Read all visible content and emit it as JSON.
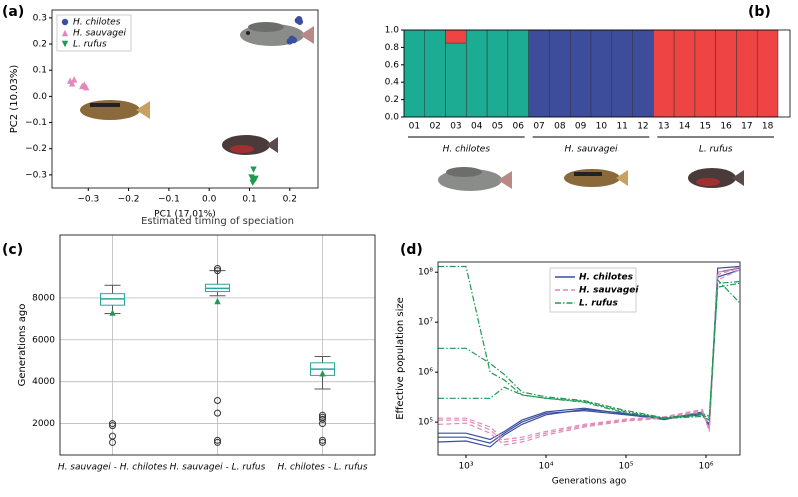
{
  "chart_data": [
    {
      "type": "scatter",
      "label": "(a)",
      "x_label": "PC1 (17.01%)",
      "y_label": "PC2 (10.03%)",
      "xlim": [
        -0.39,
        0.27
      ],
      "ylim": [
        -0.35,
        0.33
      ],
      "xticks": [
        {
          "value": -0.3,
          "label": "−0.3"
        },
        {
          "value": -0.2,
          "label": "−0.2"
        },
        {
          "value": -0.1,
          "label": "−0.1"
        },
        {
          "value": 0,
          "label": "0.0"
        },
        0.1,
        0.2
      ],
      "yticks": [
        {
          "value": -0.3,
          "label": "−0.3"
        },
        {
          "value": -0.2,
          "label": "−0.2"
        },
        {
          "value": -0.1,
          "label": "−0.1"
        },
        {
          "value": 0,
          "label": "0.0"
        },
        0.1,
        0.2,
        0.3
      ],
      "legend": "upper left",
      "series": [
        {
          "name": "H. chilotes",
          "color": "#3b4fa0",
          "marker": "o",
          "x": [
            0.22,
            0.223,
            0.225,
            0.2,
            0.205,
            0.21
          ],
          "values": [
            0.29,
            0.295,
            0.285,
            0.21,
            0.22,
            0.215
          ]
        },
        {
          "name": "H. sauvagei",
          "color": "#e389b9",
          "marker": "^",
          "x": [
            -0.345,
            -0.34,
            -0.335,
            -0.315,
            -0.31,
            -0.305
          ],
          "values": [
            0.06,
            0.05,
            0.065,
            0.04,
            0.045,
            0.035
          ]
        },
        {
          "name": "L. rufus",
          "color": "#1f9a55",
          "marker": "v",
          "x": [
            0.11,
            0.105,
            0.112,
            0.108,
            0.115,
            0.11
          ],
          "values": [
            -0.28,
            -0.31,
            -0.32,
            -0.33,
            -0.315,
            -0.325
          ]
        }
      ]
    },
    {
      "type": "bar",
      "stacked": true,
      "label": "(b)",
      "categories": [
        "01",
        "02",
        "03",
        "04",
        "05",
        "06",
        "07",
        "08",
        "09",
        "10",
        "11",
        "12",
        "13",
        "14",
        "15",
        "16",
        "17",
        "18"
      ],
      "group_labels": [
        "H. chilotes",
        "H. sauvagei",
        "L. rufus"
      ],
      "ylim": [
        0,
        1
      ],
      "yticks": [
        {
          "value": 0,
          "label": "0.0"
        },
        0.2,
        0.4,
        0.6,
        0.8,
        {
          "value": 1,
          "label": "1.0"
        }
      ],
      "series": [
        {
          "color": "#1cab93",
          "values": [
            1,
            1,
            0.85,
            1,
            1,
            1,
            0,
            0,
            0,
            0,
            0,
            0,
            0,
            0,
            0,
            0,
            0,
            0
          ]
        },
        {
          "color": "#3d4d9b",
          "values": [
            0,
            0,
            0,
            0,
            0,
            0,
            1,
            1,
            1,
            1,
            1,
            1,
            0,
            0,
            0,
            0,
            0,
            0
          ]
        },
        {
          "color": "#ee4443",
          "values": [
            0,
            0,
            0.15,
            0,
            0,
            0,
            0,
            0,
            0,
            0,
            0,
            0,
            1,
            1,
            1,
            1,
            1,
            1
          ]
        }
      ]
    },
    {
      "type": "box",
      "label": "(c)",
      "title": "Estimated timing of speciation",
      "y_label": "Generations ago",
      "categories": [
        "H. sauvagei - H. chilotes",
        "H. sauvagei - L. rufus",
        "H. chilotes - L. rufus"
      ],
      "ylim": [
        500,
        11000
      ],
      "yticks": [
        2000,
        4000,
        6000,
        8000
      ],
      "grid": true,
      "color": "#2aa59a",
      "mean_color": "#1f9a55",
      "boxes": [
        {
          "whislo": 7250,
          "q1": 7650,
          "med": 7950,
          "q3": 8200,
          "whishi": 8600,
          "mean": 7300,
          "fliers": [
            1100,
            1400,
            1900,
            2000
          ]
        },
        {
          "whislo": 8100,
          "q1": 8300,
          "med": 8450,
          "q3": 8650,
          "whishi": 9300,
          "mean": 7850,
          "fliers": [
            1100,
            1200,
            2500,
            3100,
            9300,
            9400
          ]
        },
        {
          "whislo": 3650,
          "q1": 4300,
          "med": 4600,
          "q3": 4900,
          "whishi": 5200,
          "mean": 4400,
          "fliers": [
            1100,
            1200,
            2000,
            2200,
            2300,
            2400
          ]
        }
      ]
    },
    {
      "type": "line",
      "label": "(d)",
      "x_label": "Generations ago",
      "y_label": "Effective population size",
      "xscale": "log",
      "yscale": "log",
      "xlim": [
        447,
        2660000
      ],
      "ylim": [
        22000,
        160000000
      ],
      "xticks": [
        {
          "value": 1000,
          "label": "10³"
        },
        {
          "value": 10000,
          "label": "10⁴"
        },
        {
          "value": 100000,
          "label": "10⁵"
        },
        {
          "value": 1000000,
          "label": "10⁶"
        }
      ],
      "yticks": [
        {
          "value": 100000,
          "label": "10⁵"
        },
        {
          "value": 1000000,
          "label": "10⁶"
        },
        {
          "value": 10000000,
          "label": "10⁷"
        },
        {
          "value": 100000000,
          "label": "10⁸"
        }
      ],
      "legend": "upper right",
      "x": [
        450,
        1000,
        2000,
        3000,
        5000,
        10000,
        30000,
        100000,
        300000,
        900000,
        1100000,
        1400000,
        2600000
      ],
      "series": [
        {
          "name": "H. chilotes",
          "color": "#3b4fa0",
          "dash": "solid",
          "runs": [
            [
              50000,
              50000,
              38000,
              60000,
              100000,
              150000,
              170000,
              140000,
              115000,
              150000,
              80000,
              100000000,
              120000000
            ],
            [
              40000,
              42000,
              32000,
              55000,
              90000,
              140000,
              180000,
              150000,
              118000,
              140000,
              90000,
              80000000,
              110000000
            ],
            [
              60000,
              60000,
              45000,
              65000,
              110000,
              160000,
              190000,
              145000,
              112000,
              160000,
              75000,
              120000000,
              130000000
            ]
          ]
        },
        {
          "name": "H. sauvagei",
          "color": "#e389b9",
          "dash": "dashed",
          "runs": [
            [
              110000,
              110000,
              70000,
              40000,
              45000,
              60000,
              85000,
              110000,
              125000,
              170000,
              70000,
              90000000,
              120000000
            ],
            [
              90000,
              95000,
              60000,
              35000,
              40000,
              55000,
              80000,
              105000,
              120000,
              160000,
              80000,
              70000000,
              110000000
            ],
            [
              120000,
              120000,
              80000,
              45000,
              50000,
              65000,
              90000,
              115000,
              128000,
              180000,
              65000,
              100000000,
              125000000
            ]
          ]
        },
        {
          "name": "L. rufus",
          "color": "#1f9a55",
          "dash": "dashdot",
          "runs": [
            [
              130000000,
              130000000,
              1000000,
              700000,
              350000,
              300000,
              260000,
              160000,
              120000,
              140000,
              120000,
              60000000,
              65000000
            ],
            [
              3000000,
              3000000,
              1500000,
              900000,
              400000,
              320000,
              270000,
              170000,
              122000,
              150000,
              130000,
              70000000,
              25000000
            ],
            [
              300000,
              300000,
              300000,
              500000,
              350000,
              300000,
              250000,
              150000,
              118000,
              130000,
              110000,
              50000000,
              60000000
            ]
          ]
        }
      ]
    }
  ]
}
